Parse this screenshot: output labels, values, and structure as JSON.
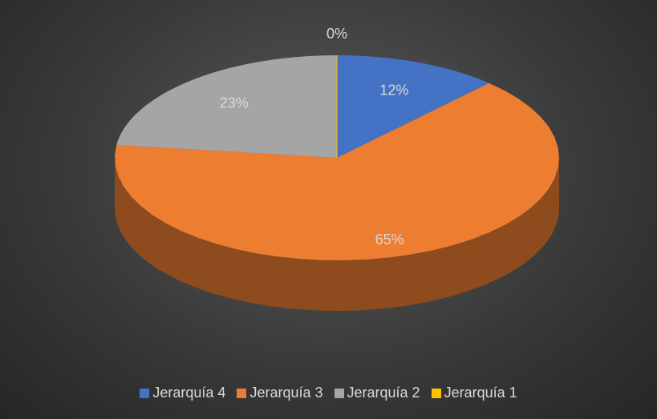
{
  "chart_data": {
    "type": "pie",
    "categories": [
      "Jerarquía 4",
      "Jerarquía 3",
      "Jerarquía 2",
      "Jerarquía 1"
    ],
    "values": [
      12,
      65,
      23,
      0
    ],
    "value_labels": [
      "12%",
      "65%",
      "23%",
      "0%"
    ],
    "colors": [
      "#4472c4",
      "#ed7d31",
      "#a5a5a5",
      "#ffc000"
    ],
    "legend": "bottom"
  }
}
